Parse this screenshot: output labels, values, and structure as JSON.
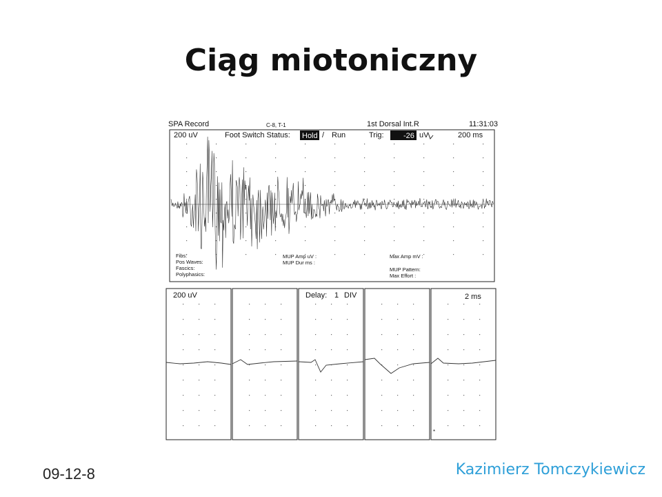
{
  "slide": {
    "title": "Ciąg miotoniczny",
    "date": "09-12-8",
    "author": "Kazimierz Tomczykiewicz"
  },
  "record": {
    "header_left": "SPA Record",
    "channel": "C-8, T-1",
    "muscle": "1st Dorsal Int.R",
    "time": "11:31:03",
    "gain": "200 uV",
    "foot_switch_label": "Foot Switch Status:",
    "hold_label": "Hold",
    "slash": "/",
    "run_label": "Run",
    "trig_label": "Trig:",
    "trig_value": "-26",
    "trig_unit": "uV",
    "sweep": "200 ms",
    "fields_left": [
      "Fibs:",
      "Pos Waves:",
      "Fascics:",
      "Polyphasics:"
    ],
    "fields_mid": [
      "MUP Amp uV :",
      "MUP Dur ms :"
    ],
    "fields_right_top": "Max Amp mV :",
    "fields_right_bottom": [
      "MUP Pattern:",
      "Max Effort :"
    ]
  },
  "lower": {
    "gain": "200 uV",
    "delay_label": "Delay:",
    "delay_value": "1",
    "delay_unit": "DIV",
    "sweep": "2 ms"
  }
}
